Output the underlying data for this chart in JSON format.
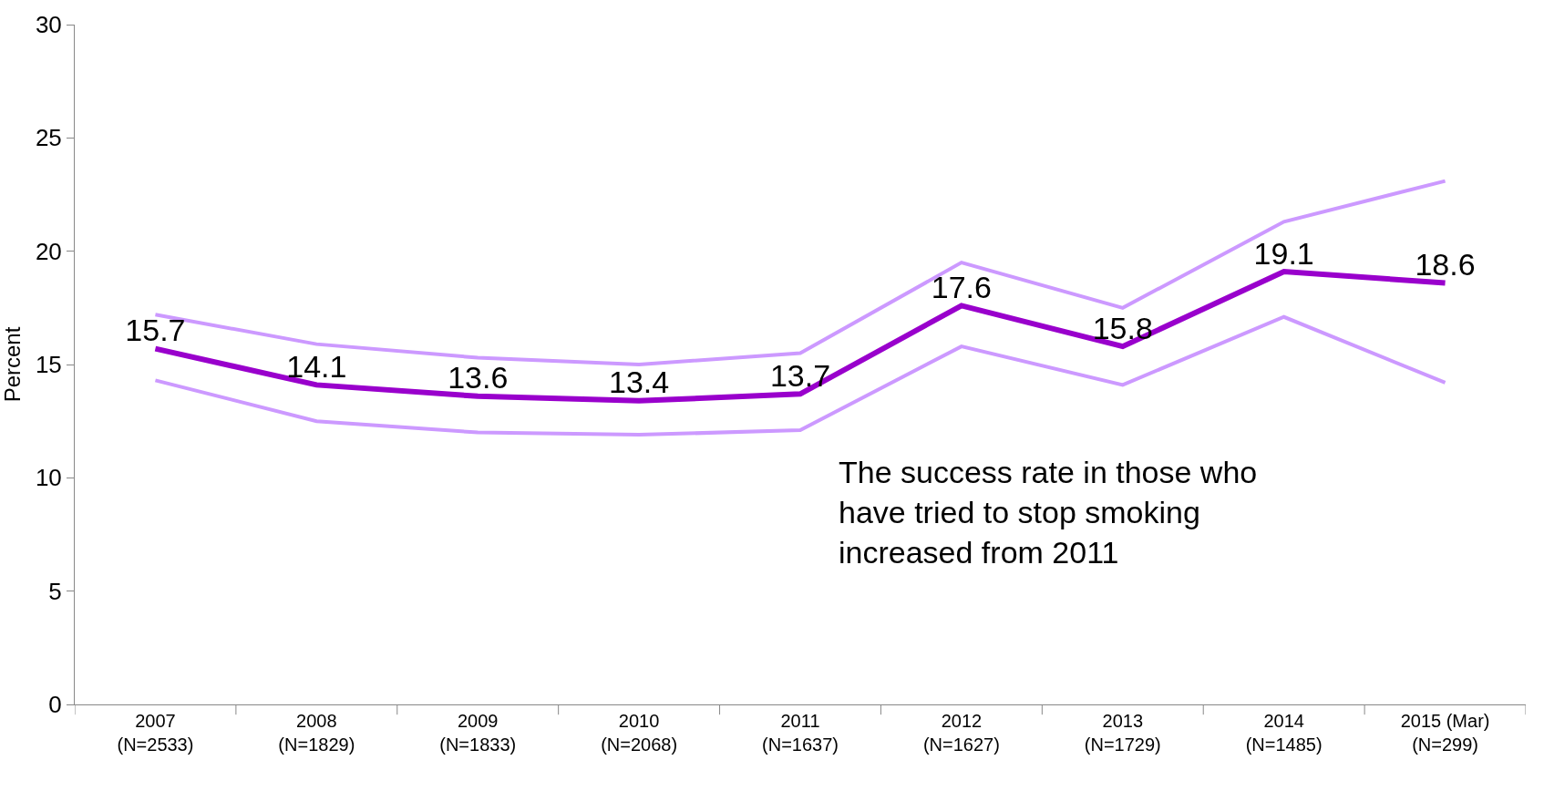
{
  "chart_data": {
    "type": "line",
    "ylabel": "Percent",
    "categories": [
      "2007\n(N=2533)",
      "2008\n(N=1829)",
      "2009\n(N=1833)",
      "2010\n(N=2068)",
      "2011\n(N=1637)",
      "2012\n(N=1627)",
      "2013\n(N=1729)",
      "2014\n(N=1485)",
      "2015 (Mar)\n(N=299)"
    ],
    "series": [
      {
        "color": "#cc99ff",
        "values": [
          17.2,
          15.9,
          15.3,
          15.0,
          15.5,
          19.5,
          17.5,
          21.3,
          23.1
        ]
      },
      {
        "color": "#cc99ff",
        "values": [
          14.3,
          12.5,
          12.0,
          11.9,
          12.1,
          15.8,
          14.1,
          17.1,
          14.2
        ]
      },
      {
        "color": "#9900cc",
        "values": [
          15.7,
          14.1,
          13.6,
          13.4,
          13.7,
          17.6,
          15.8,
          19.1,
          18.6
        ],
        "value_labels": [
          "15.7",
          "14.1",
          "13.6",
          "13.4",
          "13.7",
          "17.6",
          "15.8",
          "19.1",
          "18.6"
        ]
      }
    ],
    "ylim": [
      0,
      30
    ],
    "yticks": [
      0,
      5,
      10,
      15,
      20,
      25,
      30
    ],
    "marker": "none",
    "line_style": "solid",
    "annotations": [
      "The success rate in those who\nhave tried to stop smoking\nincreased from 2011"
    ]
  }
}
